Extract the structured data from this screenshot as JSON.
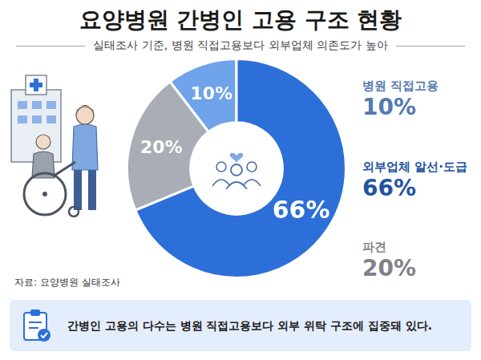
{
  "chart_data": {
    "type": "doughnut",
    "title": "요양병원 간병인 고용 구조 현황",
    "subtitle": "실태조사 기준, 병원 직접고용보다 외부업체 의존도가 높아",
    "categories": [
      "병원 직접고용",
      "외부업체 알선·도급",
      "파견"
    ],
    "values": [
      10,
      66,
      20
    ],
    "value_labels": [
      "10%",
      "66%",
      "20%"
    ],
    "colors": [
      "#6fa3ea",
      "#2d6fd8",
      "#a9adb5"
    ],
    "data_labels": true,
    "legend": "right",
    "source": "자료: 요양병원 실태조사",
    "annotation": "간병인 고용의 다수는 병원 직접고용보다 외부 위탁 구조에 집중돼 있다."
  }
}
